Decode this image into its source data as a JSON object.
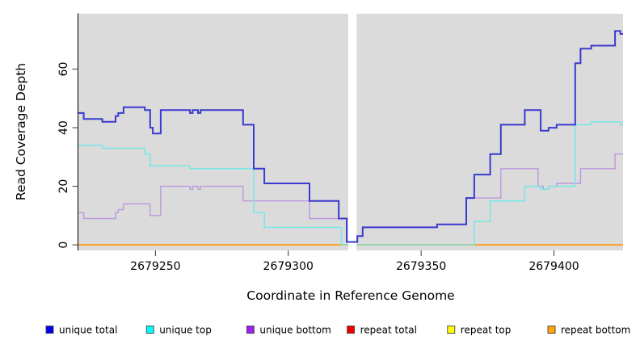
{
  "figure": {
    "xlabel": "Coordinate in Reference Genome",
    "ylabel": "Read Coverage Depth"
  },
  "chart_data": {
    "type": "line",
    "subtype": "step-coverage-plot",
    "title": "",
    "xlabel": "Coordinate in Reference Genome",
    "ylabel": "Read Coverage Depth",
    "xlim": [
      2679221,
      2679426
    ],
    "ylim": [
      -1.9,
      78.9
    ],
    "xticks": [
      2679250,
      2679300,
      2679350,
      2679400
    ],
    "yticks": [
      0,
      20,
      40,
      60
    ],
    "grid": false,
    "plot_bg": "#DBDBDB",
    "mask_region": [
      2679322.6,
      2679325.7
    ],
    "legend_position": "bottom",
    "series": [
      {
        "name": "unique total",
        "line_color": "#3A3AD0",
        "legend_color": "#0000EE",
        "width": 2,
        "points": [
          [
            2679221,
            45
          ],
          [
            2679223,
            43
          ],
          [
            2679230,
            42
          ],
          [
            2679235,
            44
          ],
          [
            2679236,
            45
          ],
          [
            2679238,
            47
          ],
          [
            2679246,
            46
          ],
          [
            2679248,
            40
          ],
          [
            2679249,
            38
          ],
          [
            2679252,
            46
          ],
          [
            2679263,
            45
          ],
          [
            2679264,
            46
          ],
          [
            2679266,
            45
          ],
          [
            2679267,
            46
          ],
          [
            2679283,
            41
          ],
          [
            2679287,
            26
          ],
          [
            2679291,
            21
          ],
          [
            2679308,
            15
          ],
          [
            2679319,
            9
          ],
          [
            2679322,
            1
          ],
          [
            2679326,
            3
          ],
          [
            2679328,
            6
          ],
          [
            2679356,
            7
          ],
          [
            2679367,
            16
          ],
          [
            2679370,
            24
          ],
          [
            2679376,
            31
          ],
          [
            2679380,
            41
          ],
          [
            2679389,
            46
          ],
          [
            2679395,
            39
          ],
          [
            2679398,
            40
          ],
          [
            2679401,
            41
          ],
          [
            2679408,
            62
          ],
          [
            2679410,
            67
          ],
          [
            2679414,
            68
          ],
          [
            2679423,
            73
          ],
          [
            2679425,
            72
          ]
        ]
      },
      {
        "name": "unique top",
        "line_color": "#6FE8E8",
        "legend_color": "#00FFFF",
        "width": 1.4,
        "points": [
          [
            2679221,
            34
          ],
          [
            2679230,
            33
          ],
          [
            2679246,
            31
          ],
          [
            2679248,
            27
          ],
          [
            2679263,
            26
          ],
          [
            2679287,
            11
          ],
          [
            2679291,
            6
          ],
          [
            2679320,
            0
          ],
          [
            2679370,
            8
          ],
          [
            2679376,
            15
          ],
          [
            2679389,
            20
          ],
          [
            2679395,
            19
          ],
          [
            2679398,
            20
          ],
          [
            2679408,
            41
          ],
          [
            2679414,
            42
          ],
          [
            2679425,
            41
          ]
        ]
      },
      {
        "name": "unique bottom",
        "line_color": "#BD97DE",
        "legend_color": "#A020F0",
        "width": 1.4,
        "points": [
          [
            2679221,
            11
          ],
          [
            2679223,
            9
          ],
          [
            2679235,
            11
          ],
          [
            2679236,
            12
          ],
          [
            2679238,
            14
          ],
          [
            2679248,
            10
          ],
          [
            2679252,
            20
          ],
          [
            2679263,
            19
          ],
          [
            2679264,
            20
          ],
          [
            2679266,
            19
          ],
          [
            2679267,
            20
          ],
          [
            2679283,
            15
          ],
          [
            2679308,
            9
          ],
          [
            2679322,
            1
          ],
          [
            2679326,
            3
          ],
          [
            2679328,
            6
          ],
          [
            2679356,
            7
          ],
          [
            2679367,
            16
          ],
          [
            2679380,
            26
          ],
          [
            2679394,
            20
          ],
          [
            2679396,
            19
          ],
          [
            2679398,
            20
          ],
          [
            2679401,
            21
          ],
          [
            2679410,
            26
          ],
          [
            2679423,
            31
          ]
        ]
      },
      {
        "name": "repeat total",
        "line_color": "#E60000",
        "legend_color": "#EE0000",
        "width": 1.4,
        "points": [
          [
            2679221,
            0
          ]
        ]
      },
      {
        "name": "repeat top",
        "line_color": "#FFFF00",
        "legend_color": "#FFFF00",
        "width": 1.4,
        "points": [
          [
            2679221,
            0
          ]
        ]
      },
      {
        "name": "repeat bottom",
        "line_color": "#FFA01E",
        "legend_color": "#FFA500",
        "width": 1.7,
        "points": [
          [
            2679221,
            0
          ]
        ]
      }
    ]
  }
}
